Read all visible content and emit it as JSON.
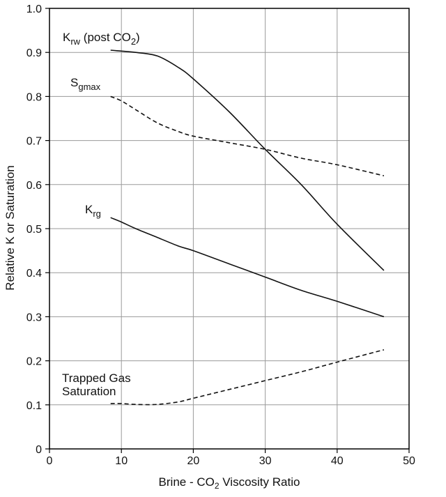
{
  "chart_data": {
    "type": "line",
    "xlabel": {
      "pre": "Brine - CO",
      "sub": "2",
      "post": " Viscosity Ratio"
    },
    "ylabel": "Relative K or Saturation",
    "xlim": [
      0,
      50
    ],
    "ylim": [
      0,
      1.0
    ],
    "xticks": [
      "0",
      "10",
      "20",
      "30",
      "40",
      "50"
    ],
    "yticks": [
      "0",
      "0.1",
      "0.2",
      "0.3",
      "0.4",
      "0.5",
      "0.6",
      "0.7",
      "0.8",
      "0.9",
      "1.0"
    ],
    "grid": true,
    "series": [
      {
        "name": {
          "base": "K",
          "sub": "rw",
          "post": " (post CO",
          "sub2": "2",
          "tail": ")"
        },
        "style": "solid",
        "x": [
          8.5,
          10,
          12,
          15,
          18,
          20,
          25,
          30,
          35,
          40,
          46.5
        ],
        "y": [
          0.905,
          0.903,
          0.9,
          0.892,
          0.865,
          0.84,
          0.765,
          0.68,
          0.6,
          0.51,
          0.405
        ]
      },
      {
        "name": {
          "base": "S",
          "sub": "gmax"
        },
        "style": "dashed",
        "x": [
          8.5,
          10,
          12,
          15,
          18,
          20,
          25,
          30,
          35,
          40,
          46.5
        ],
        "y": [
          0.8,
          0.79,
          0.77,
          0.74,
          0.72,
          0.71,
          0.695,
          0.68,
          0.66,
          0.645,
          0.62
        ]
      },
      {
        "name": {
          "base": "K",
          "sub": "rg"
        },
        "style": "solid",
        "x": [
          8.5,
          10,
          12,
          15,
          18,
          20,
          25,
          30,
          35,
          40,
          46.5
        ],
        "y": [
          0.525,
          0.515,
          0.5,
          0.48,
          0.46,
          0.45,
          0.42,
          0.39,
          0.36,
          0.335,
          0.3
        ]
      },
      {
        "name": {
          "line1": "Trapped Gas",
          "line2": "Saturation"
        },
        "style": "dashed",
        "x": [
          8.5,
          10,
          12,
          15,
          18,
          20,
          25,
          30,
          35,
          40,
          46.5
        ],
        "y": [
          0.103,
          0.103,
          0.101,
          0.101,
          0.107,
          0.115,
          0.135,
          0.155,
          0.175,
          0.197,
          0.225
        ]
      }
    ]
  }
}
